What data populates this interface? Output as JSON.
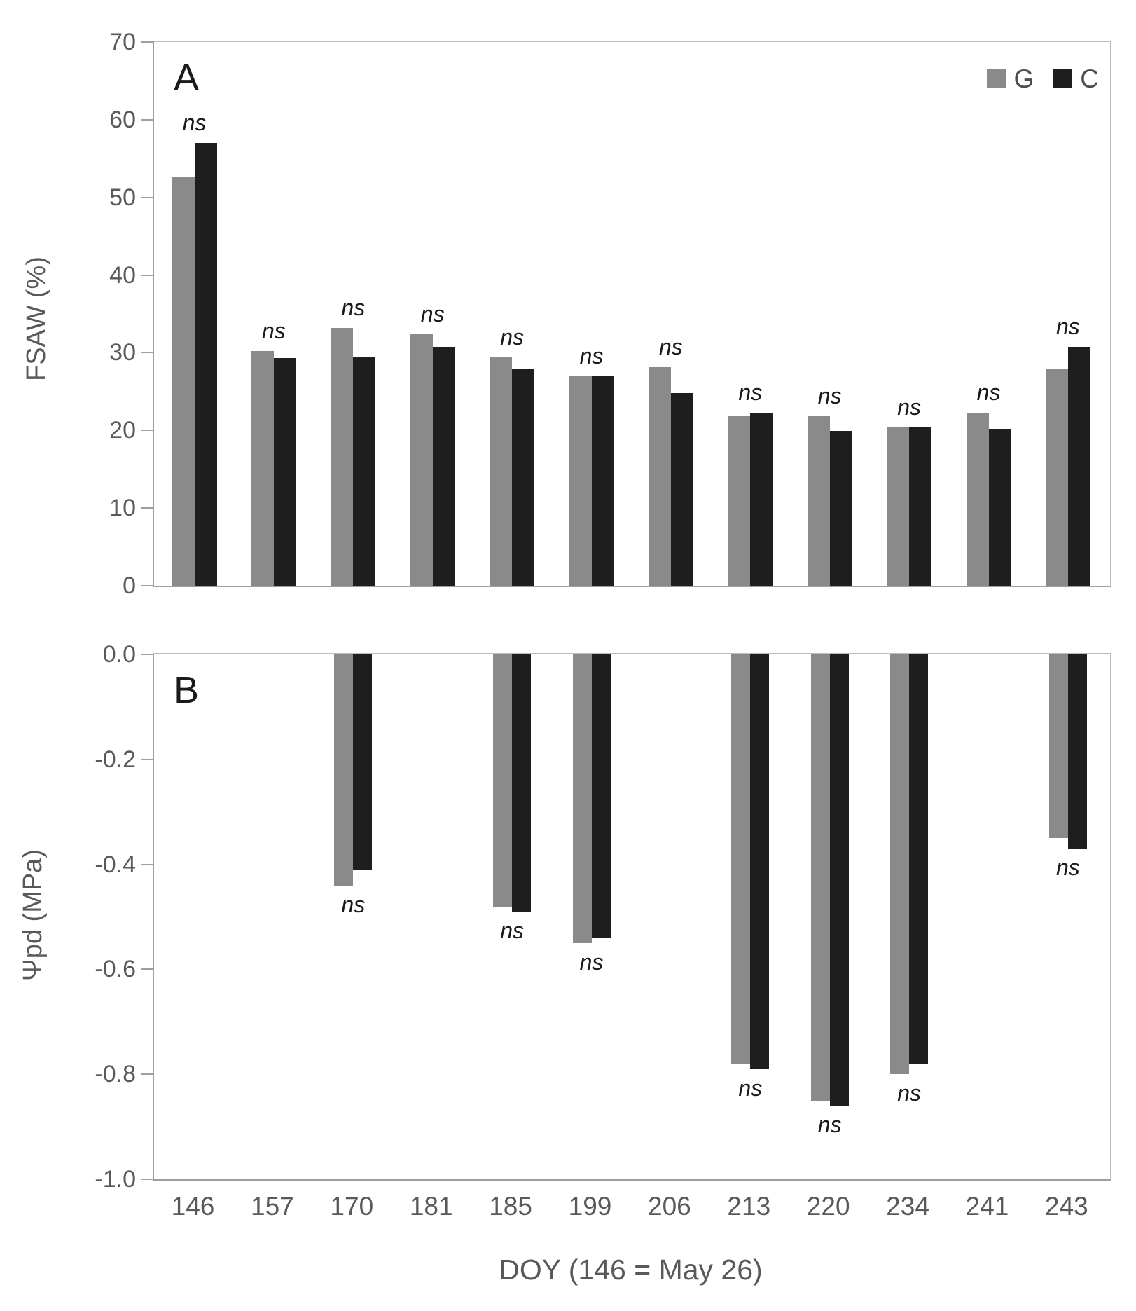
{
  "figure": {
    "xlabel": "DOY (146 = May 26)",
    "legend": {
      "g_label": "G",
      "c_label": "C"
    },
    "colors": {
      "g_bar": "#8a8a8a",
      "c_bar": "#1e1e1e",
      "axis": "#9e9e9e",
      "border": "#bcbcbc",
      "tick_text": "#595959",
      "annotation_text": "#1a1a1a"
    }
  },
  "chart_data": [
    {
      "type": "bar",
      "panel_label": "A",
      "ylabel": "FSAW (%)",
      "ylim": [
        0,
        70
      ],
      "grid": false,
      "legend_position": "top-right",
      "yticks": [
        {
          "v": 0,
          "label": "0"
        },
        {
          "v": 10,
          "label": "10"
        },
        {
          "v": 20,
          "label": "20"
        },
        {
          "v": 30,
          "label": "30"
        },
        {
          "v": 40,
          "label": "40"
        },
        {
          "v": 50,
          "label": "50"
        },
        {
          "v": 60,
          "label": "60"
        },
        {
          "v": 70,
          "label": "70"
        }
      ],
      "categories": [
        "146",
        "157",
        "170",
        "181",
        "185",
        "199",
        "206",
        "213",
        "220",
        "234",
        "241",
        "243"
      ],
      "series": [
        {
          "name": "G",
          "values": [
            52.6,
            30.2,
            33.2,
            32.4,
            29.4,
            27.0,
            28.1,
            21.8,
            21.8,
            20.4,
            22.3,
            27.9
          ]
        },
        {
          "name": "C",
          "values": [
            57.0,
            29.3,
            29.4,
            30.8,
            28.0,
            27.0,
            24.8,
            22.3,
            19.9,
            20.4,
            20.2,
            30.8
          ]
        }
      ],
      "annotations": [
        "ns",
        "ns",
        "ns",
        "ns",
        "ns",
        "ns",
        "ns",
        "ns",
        "ns",
        "ns",
        "ns",
        "ns"
      ]
    },
    {
      "type": "bar",
      "panel_label": "B",
      "ylabel": "Ψpd (MPa)",
      "ylim": [
        -1.0,
        0.0
      ],
      "grid": false,
      "yticks": [
        {
          "v": 0,
          "label": "0.0"
        },
        {
          "v": -0.2,
          "label": "-0.2"
        },
        {
          "v": -0.4,
          "label": "-0.4"
        },
        {
          "v": -0.6,
          "label": "-0.6"
        },
        {
          "v": -0.8,
          "label": "-0.8"
        },
        {
          "v": -1.0,
          "label": "-1.0"
        }
      ],
      "categories": [
        "146",
        "157",
        "170",
        "181",
        "185",
        "199",
        "206",
        "213",
        "220",
        "234",
        "241",
        "243"
      ],
      "series": [
        {
          "name": "G",
          "values": [
            null,
            null,
            -0.44,
            null,
            -0.48,
            -0.55,
            null,
            -0.78,
            -0.85,
            -0.8,
            null,
            -0.35
          ]
        },
        {
          "name": "C",
          "values": [
            null,
            null,
            -0.41,
            null,
            -0.49,
            -0.54,
            null,
            -0.79,
            -0.86,
            -0.78,
            null,
            -0.37
          ]
        }
      ],
      "annotations": [
        null,
        null,
        "ns",
        null,
        "ns",
        "ns",
        null,
        "ns",
        "ns",
        "ns",
        null,
        "ns"
      ]
    }
  ]
}
